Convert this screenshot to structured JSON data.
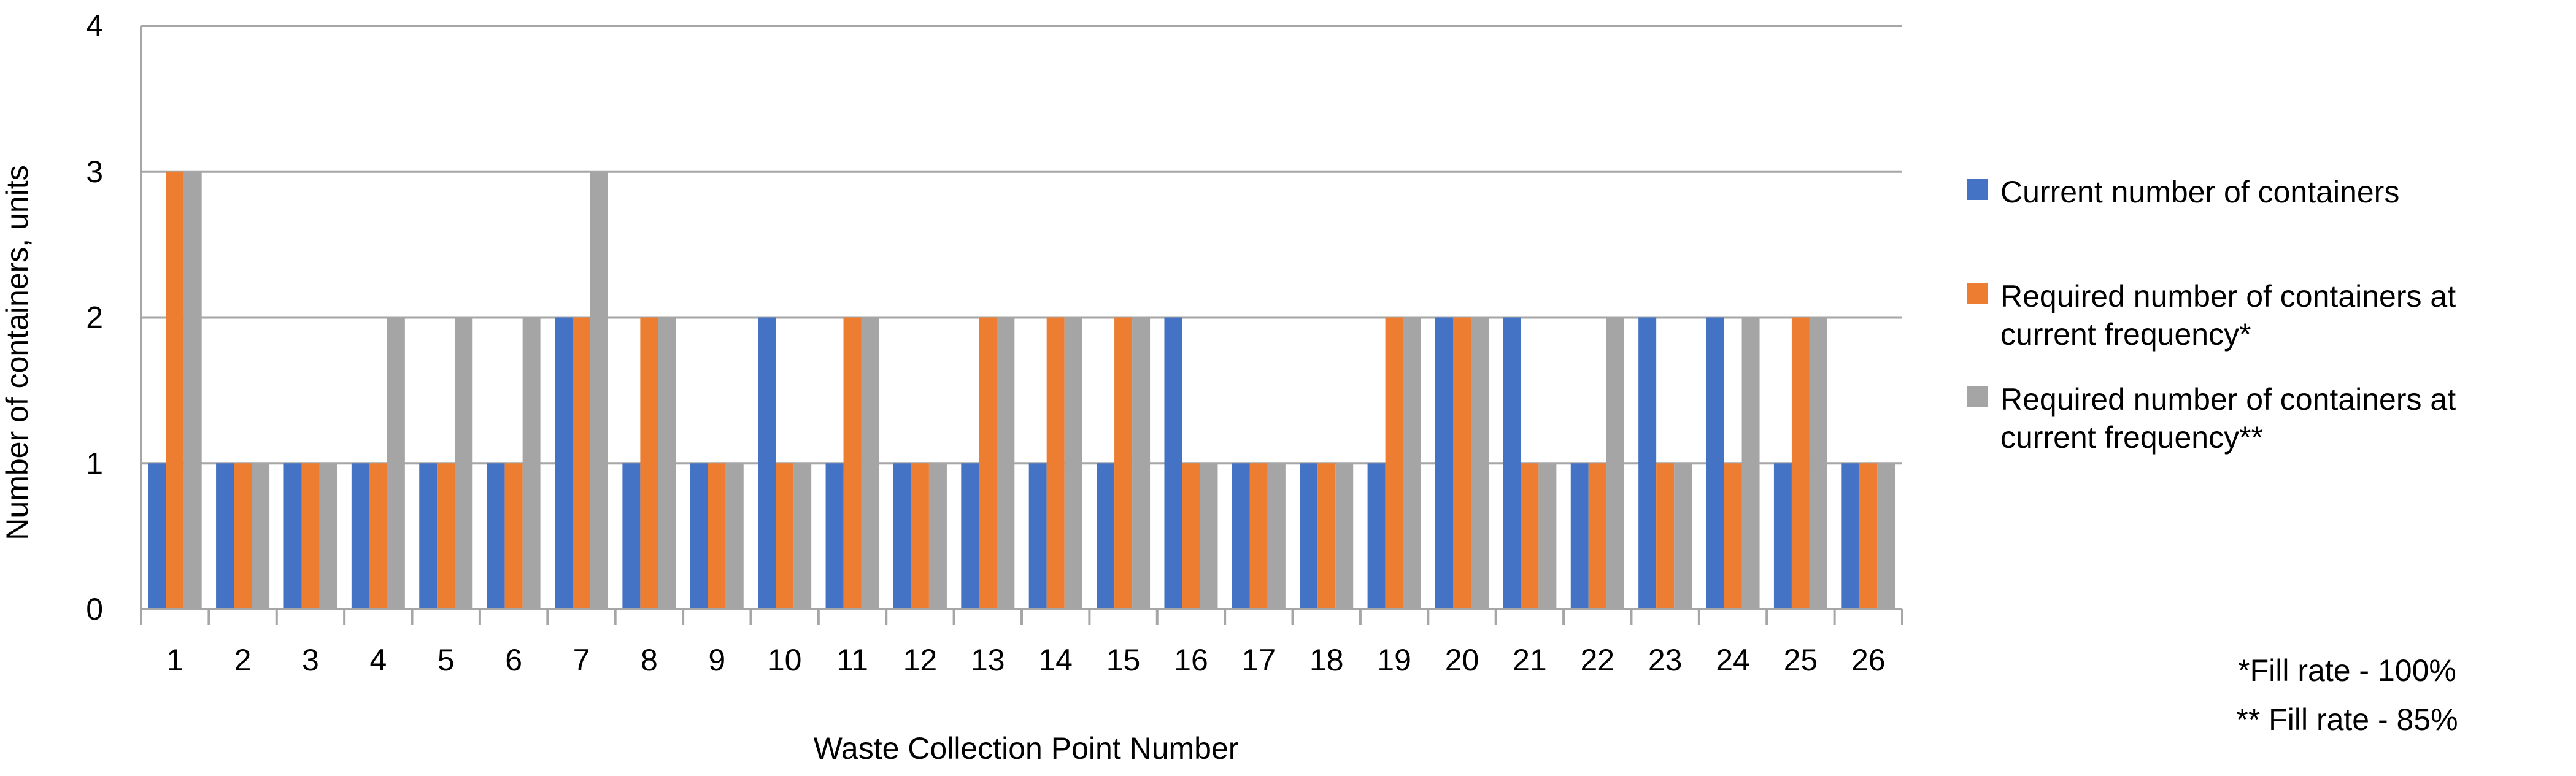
{
  "chart_data": {
    "type": "bar",
    "title": "",
    "xlabel": "Waste Collection Point Number",
    "ylabel": "Number of containers, units",
    "ylim": [
      0,
      4
    ],
    "yticks": [
      0,
      1,
      2,
      3,
      4
    ],
    "grid": true,
    "legend_position": "right",
    "categories": [
      "1",
      "2",
      "3",
      "4",
      "5",
      "6",
      "7",
      "8",
      "9",
      "10",
      "11",
      "12",
      "13",
      "14",
      "15",
      "16",
      "17",
      "18",
      "19",
      "20",
      "21",
      "22",
      "23",
      "24",
      "25",
      "26"
    ],
    "series": [
      {
        "name": "Current number of containers",
        "color": "#4472C4",
        "values": [
          1,
          1,
          1,
          1,
          1,
          1,
          2,
          1,
          1,
          2,
          1,
          1,
          1,
          1,
          1,
          2,
          1,
          1,
          1,
          2,
          2,
          1,
          2,
          2,
          1,
          1
        ]
      },
      {
        "name": "Required number of containers at current frequency*",
        "color": "#ED7D31",
        "values": [
          3,
          1,
          1,
          1,
          1,
          1,
          2,
          2,
          1,
          1,
          2,
          1,
          2,
          2,
          2,
          1,
          1,
          1,
          2,
          2,
          1,
          1,
          1,
          1,
          2,
          1
        ]
      },
      {
        "name": "Required number of containers at current frequency**",
        "color": "#A5A5A5",
        "values": [
          3,
          1,
          1,
          2,
          2,
          2,
          3,
          2,
          1,
          1,
          2,
          1,
          2,
          2,
          2,
          1,
          1,
          1,
          2,
          2,
          1,
          2,
          1,
          2,
          2,
          1
        ]
      }
    ],
    "notes": [
      "*Fill rate - 100%",
      "** Fill rate - 85%"
    ]
  }
}
